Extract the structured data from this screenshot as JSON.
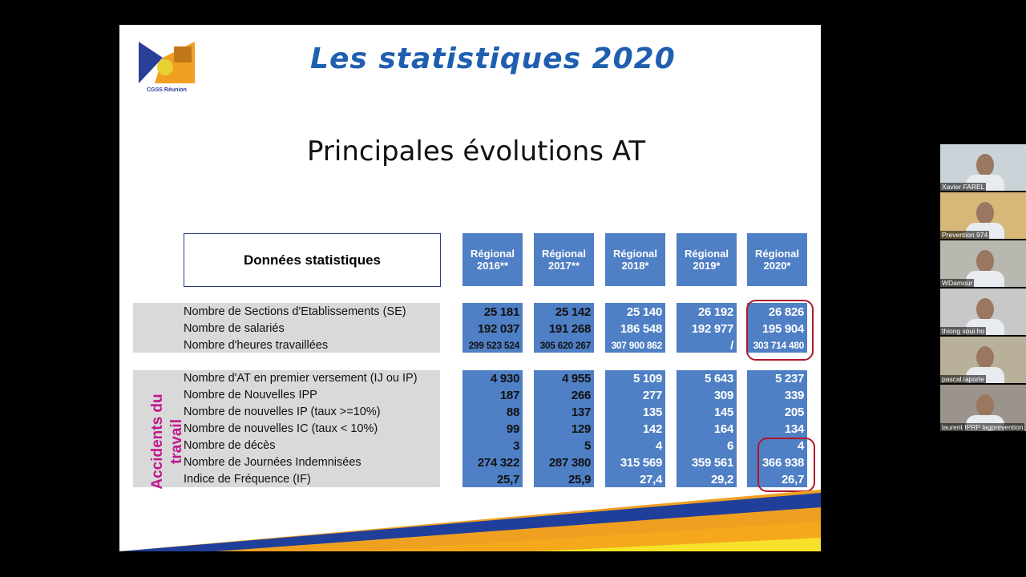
{
  "slide": {
    "title": "Les statistiques 2020",
    "subtitle": "Principales évolutions AT",
    "logo_text": "CGSS Réunion",
    "table_header": "Données statistiques",
    "columns": [
      {
        "line1": "Régional",
        "line2": "2016**"
      },
      {
        "line1": "Régional",
        "line2": "2017**"
      },
      {
        "line1": "Régional",
        "line2": "2018*"
      },
      {
        "line1": "Régional",
        "line2": "2019*"
      },
      {
        "line1": "Régional",
        "line2": "2020*"
      }
    ],
    "group1": {
      "rows": [
        {
          "label": "Nombre de Sections d'Etablissements (SE)",
          "values": [
            "25 181",
            "25 142",
            "25 140",
            "26 192",
            "26 826"
          ]
        },
        {
          "label": "Nombre de salariés",
          "values": [
            "192 037",
            "191 268",
            "186 548",
            "192 977",
            "195 904"
          ]
        },
        {
          "label": "Nombre d'heures travaillées",
          "values": [
            "299 523 524",
            "305 620 267",
            "307 900 862",
            "/",
            "303 714 480"
          ]
        }
      ]
    },
    "group2": {
      "side_label_line1": "Accidents du",
      "side_label_line2": "travail",
      "side_label_color": "#c0168c",
      "rows": [
        {
          "label": "Nombre d'AT en premier versement (IJ ou IP)",
          "values": [
            "4 930",
            "4 955",
            "5 109",
            "5 643",
            "5 237"
          ]
        },
        {
          "label": "Nombre de Nouvelles IPP",
          "values": [
            "187",
            "266",
            "277",
            "309",
            "339"
          ]
        },
        {
          "label": "Nombre de nouvelles IP (taux >=10%)",
          "values": [
            "88",
            "137",
            "135",
            "145",
            "205"
          ]
        },
        {
          "label": "Nombre de nouvelles IC (taux < 10%)",
          "values": [
            "99",
            "129",
            "142",
            "164",
            "134"
          ]
        },
        {
          "label": "Nombre de décès",
          "values": [
            "3",
            "5",
            "4",
            "6",
            "4"
          ]
        },
        {
          "label": "Nombre de Journées Indemnisées",
          "values": [
            "274 322",
            "287 380",
            "315 569",
            "359 561",
            "366 938"
          ]
        },
        {
          "label": "Indice de Fréquence (IF)",
          "values": [
            "25,7",
            "25,9",
            "27,4",
            "29,2",
            "26,7"
          ]
        }
      ]
    },
    "colors": {
      "cell": "#4f7fc4",
      "band": "#d9d9d9",
      "title": "#1f5fb0",
      "highlight": "#b0182a"
    }
  },
  "participants": [
    {
      "name": "Xavier FAREL"
    },
    {
      "name": "Prevention 974"
    },
    {
      "name": "WDamour"
    },
    {
      "name": "thiong soui ho"
    },
    {
      "name": "pascal.laporte"
    },
    {
      "name": "laurent IPRP lagprevention"
    }
  ]
}
